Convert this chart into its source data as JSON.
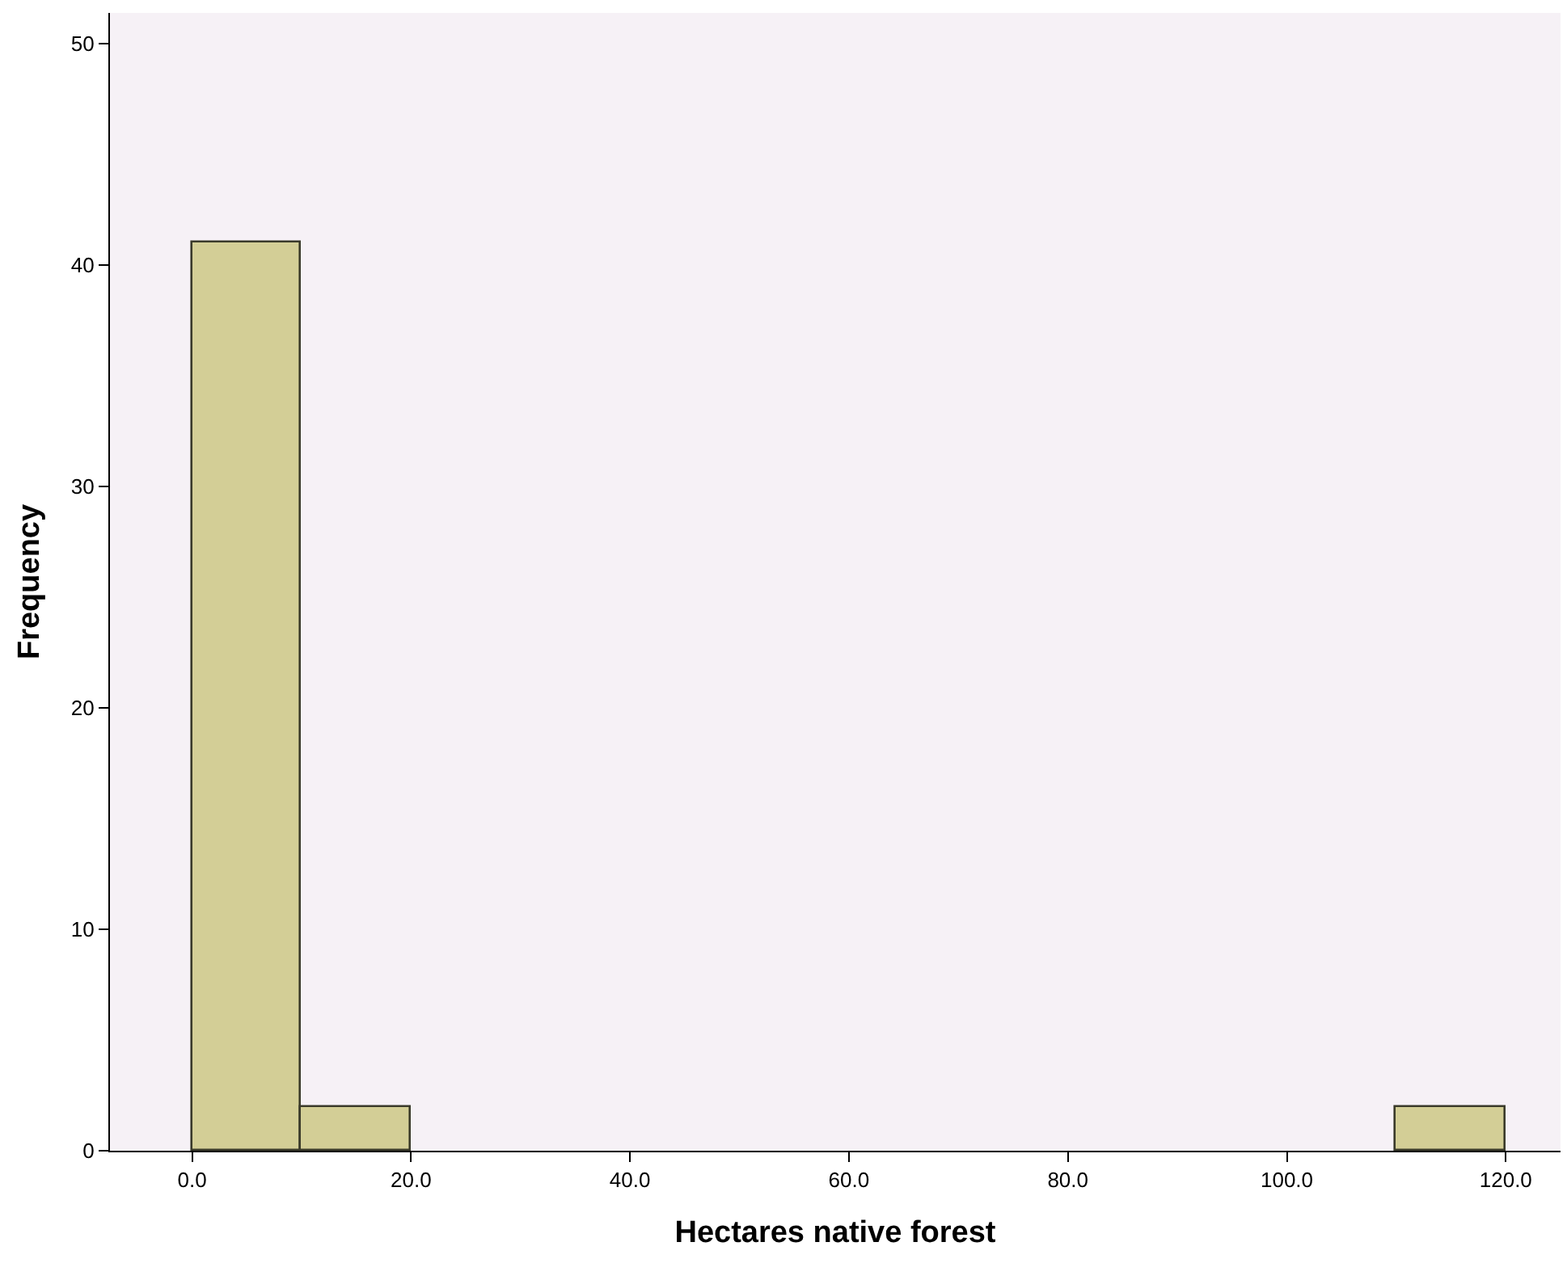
{
  "chart_data": {
    "type": "histogram",
    "xlabel": "Hectares native forest",
    "ylabel": "Frequency",
    "bins": [
      0,
      10,
      20,
      30,
      40,
      50,
      60,
      70,
      80,
      90,
      100,
      110,
      120
    ],
    "values": [
      41,
      2,
      0,
      0,
      0,
      0,
      0,
      0,
      0,
      0,
      0,
      2
    ],
    "color": "#d3ce96",
    "xlim": [
      -7.5,
      125
    ],
    "xticks": [
      {
        "value": 0,
        "label": "0.0"
      },
      {
        "value": 20,
        "label": "20.0"
      },
      {
        "value": 40,
        "label": "40.0"
      },
      {
        "value": 60,
        "label": "60.0"
      },
      {
        "value": 80,
        "label": "80.0"
      },
      {
        "value": 100,
        "label": "100.0"
      },
      {
        "value": 120,
        "label": "120.0"
      }
    ],
    "ylim": [
      0,
      51.4
    ],
    "yticks": [
      0,
      10,
      20,
      30,
      40,
      50
    ],
    "grid": false
  }
}
